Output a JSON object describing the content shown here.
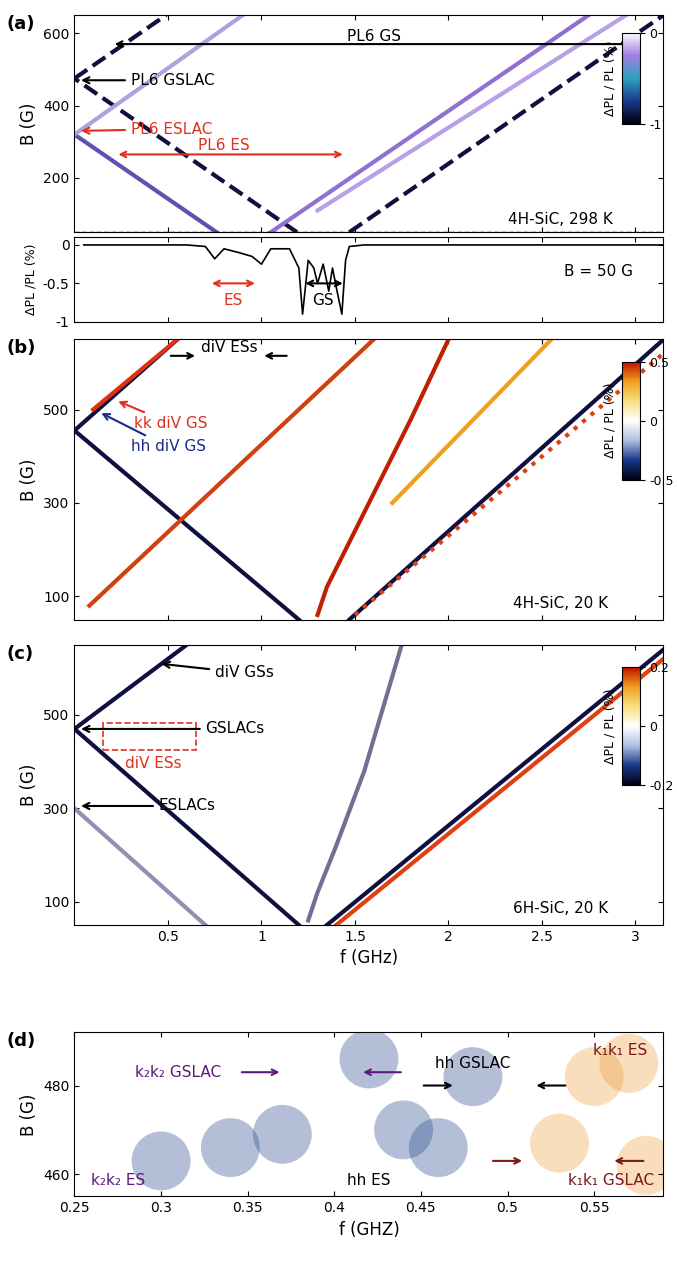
{
  "chart_data": [
    {
      "panel": "(a)",
      "type": "line",
      "xlim": [
        0,
        3.15
      ],
      "ylim": [
        50,
        650
      ],
      "xticks": [
        0.5,
        1,
        1.5,
        2,
        2.5,
        3
      ],
      "yticks": [
        200,
        400,
        600
      ],
      "tick_labels": "y",
      "y_label": "B (G)",
      "reference_line": 50,
      "colorbar": {
        "range": [
          -1,
          0
        ],
        "ticks": [
          -1,
          0
        ],
        "label": "ΔPL / PL (%)"
      },
      "series": [
        {
          "x": [
            1.47,
            3.15
          ],
          "values": [
            50,
            650
          ],
          "color": "#101040",
          "line_style": "dashed"
        },
        {
          "x": [
            1.19,
            0.0
          ],
          "values": [
            50,
            475
          ],
          "color": "#101040",
          "line_style": "dashed"
        },
        {
          "x": [
            0.0,
            0.49
          ],
          "values": [
            475,
            650
          ],
          "color": "#101040",
          "line_style": "dashed"
        },
        {
          "x": [
            1.05,
            2.75
          ],
          "values": [
            50,
            650
          ],
          "color": "#9070d0",
          "line_style": "solid"
        },
        {
          "x": [
            1.3,
            2.95
          ],
          "values": [
            110,
            650
          ],
          "color": "#b8a0e8",
          "line_style": "solid"
        },
        {
          "x": [
            0.76,
            0.0
          ],
          "values": [
            50,
            320
          ],
          "color": "#6050b0",
          "line_style": "solid"
        },
        {
          "x": [
            0.0,
            0.9
          ],
          "values": [
            320,
            650
          ],
          "color": "#b0a0e0",
          "line_style": "solid"
        }
      ],
      "annotations": [
        {
          "text": "PL6 GS",
          "x": 1.6,
          "y": 590,
          "color": "#000000",
          "span": [
            0.2,
            3.0
          ],
          "span_y": 570
        },
        {
          "text": "PL6 GSLAC",
          "x": 0.3,
          "y": 470,
          "color": "#000000",
          "arrow_to": [
            0.02,
            470
          ]
        },
        {
          "text": "PL6 ESLAC",
          "x": 0.3,
          "y": 335,
          "color": "#e0301e",
          "arrow_to": [
            0.02,
            330
          ]
        },
        {
          "text": "PL6 ES",
          "x": 0.8,
          "y": 290,
          "color": "#e0301e",
          "span": [
            0.22,
            1.45
          ],
          "span_y": 265
        },
        {
          "text": "4H-SiC, 298 K",
          "x": 2.6,
          "y": 85,
          "color": "#000000"
        }
      ]
    },
    {
      "type": "line",
      "xlim": [
        0,
        3.15
      ],
      "ylim": [
        -1,
        0.1
      ],
      "xticks": [
        0.5,
        1,
        1.5,
        2,
        2.5,
        3
      ],
      "yticks": [
        -1,
        -0.5,
        0
      ],
      "tick_labels": "y",
      "y_label": "ΔPL /PL (%)",
      "series": [
        {
          "x": [
            0.05,
            0.6,
            0.7,
            0.75,
            0.8,
            0.88,
            0.95,
            1.0,
            1.05,
            1.15,
            1.2,
            1.22,
            1.25,
            1.28,
            1.3,
            1.33,
            1.36,
            1.38,
            1.4,
            1.43,
            1.45,
            1.47,
            1.55,
            2,
            2.5,
            3.15
          ],
          "values": [
            0,
            0,
            -0.02,
            -0.18,
            -0.05,
            -0.1,
            -0.15,
            -0.25,
            -0.05,
            -0.05,
            -0.3,
            -0.9,
            -0.2,
            -0.3,
            -0.5,
            -0.25,
            -0.6,
            -0.3,
            -0.55,
            -0.9,
            -0.2,
            -0.02,
            0,
            0,
            0,
            0
          ],
          "color": "#000000",
          "line_style": "solid"
        }
      ],
      "annotations": [
        {
          "text": "B = 50 G",
          "x": 2.8,
          "y": -0.35,
          "color": "#000000"
        },
        {
          "text": "ES",
          "x": 0.85,
          "y": -0.72,
          "color": "#e0301e",
          "span": [
            0.72,
            0.98
          ],
          "span_y": -0.5
        },
        {
          "text": "GS",
          "x": 1.33,
          "y": -0.72,
          "color": "#000000",
          "span": [
            1.22,
            1.45
          ],
          "span_y": -0.5
        }
      ]
    },
    {
      "panel": "(b)",
      "type": "line",
      "xlim": [
        0,
        3.15
      ],
      "ylim": [
        50,
        650
      ],
      "xticks": [
        0.5,
        1,
        1.5,
        2,
        2.5,
        3
      ],
      "yticks": [
        100,
        300,
        500
      ],
      "tick_labels": "y",
      "y_label": "B (G)",
      "colorbar": {
        "range": [
          -0.5,
          0.5
        ],
        "ticks": [
          -0.5,
          0,
          0.5
        ],
        "label": "ΔPL / PL (%)"
      },
      "series": [
        {
          "x": [
            1.2,
            0.0
          ],
          "values": [
            50,
            455
          ],
          "color": "#101040",
          "line_style": "solid"
        },
        {
          "x": [
            0.0,
            0.55
          ],
          "values": [
            455,
            650
          ],
          "color": "#101040",
          "line_style": "solid"
        },
        {
          "x": [
            0.1,
            0.55
          ],
          "values": [
            500,
            650
          ],
          "color": "#e03010",
          "line_style": "solid"
        },
        {
          "x": [
            0.08,
            1.6
          ],
          "values": [
            80,
            650
          ],
          "color": "#d04010",
          "line_style": "solid"
        },
        {
          "x": [
            1.47,
            3.15
          ],
          "values": [
            50,
            650
          ],
          "color": "#101040",
          "line_style": "solid"
        },
        {
          "x": [
            1.5,
            3.15
          ],
          "values": [
            60,
            620
          ],
          "color": "#e04010",
          "line_style": "dotted"
        },
        {
          "x": [
            1.3,
            1.35,
            1.45,
            1.6,
            1.8,
            2.0
          ],
          "values": [
            60,
            120,
            200,
            320,
            480,
            650
          ],
          "color": "#c02000",
          "line_style": "solid"
        },
        {
          "x": [
            1.7,
            2.55
          ],
          "values": [
            300,
            650
          ],
          "color": "#f0a020",
          "line_style": "solid"
        }
      ],
      "annotations": [
        {
          "text": "diV ESs",
          "x": 0.83,
          "y": 632,
          "color": "#000000",
          "arrows": [
            [
              0.5,
              615,
              0.66,
              615
            ],
            [
              1.15,
              615,
              1.0,
              615
            ]
          ]
        },
        {
          "text": "kk diV GS",
          "x": 0.32,
          "y": 470,
          "color": "#e0301e",
          "arrow_to": [
            0.22,
            520
          ]
        },
        {
          "text": "hh diV GS",
          "x": 0.3,
          "y": 420,
          "color": "#1a2a8a",
          "arrow_to": [
            0.13,
            495
          ]
        },
        {
          "text": "4H-SiC, 20 K",
          "x": 2.6,
          "y": 85,
          "color": "#000000"
        }
      ]
    },
    {
      "panel": "(c)",
      "type": "line",
      "xlim": [
        0,
        3.15
      ],
      "ylim": [
        50,
        650
      ],
      "xticks": [
        0.5,
        1,
        1.5,
        2,
        2.5,
        3
      ],
      "yticks": [
        100,
        300,
        500
      ],
      "x_label": "f (GHz)",
      "y_label": "B (G)",
      "colorbar": {
        "range": [
          -0.2,
          0.2
        ],
        "ticks": [
          -0.2,
          0,
          0.2
        ],
        "label": "ΔPL / PL (%)"
      },
      "series": [
        {
          "x": [
            1.2,
            0.0
          ],
          "values": [
            50,
            470
          ],
          "color": "#101040",
          "line_style": "solid"
        },
        {
          "x": [
            0.0,
            0.6
          ],
          "values": [
            470,
            650
          ],
          "color": "#101040",
          "line_style": "solid"
        },
        {
          "x": [
            1.35,
            3.15
          ],
          "values": [
            50,
            640
          ],
          "color": "#101040",
          "line_style": "solid"
        },
        {
          "x": [
            1.4,
            3.15
          ],
          "values": [
            50,
            620
          ],
          "color": "#e04010",
          "line_style": "solid"
        },
        {
          "x": [
            1.25,
            1.3,
            1.4,
            1.55,
            1.75
          ],
          "values": [
            60,
            120,
            220,
            380,
            650
          ],
          "color": "#707090",
          "line_style": "solid"
        },
        {
          "x": [
            0.7,
            0.0
          ],
          "values": [
            50,
            300
          ],
          "color": "#9090b0",
          "line_style": "solid"
        }
      ],
      "box": {
        "x": [
          0.15,
          0.65
        ],
        "y": [
          425,
          482
        ],
        "color": "#e0301e"
      },
      "annotations": [
        {
          "text": "diV GSs",
          "x": 0.75,
          "y": 590,
          "color": "#000000",
          "arrow_to": [
            0.45,
            610
          ]
        },
        {
          "text": "GSLACs",
          "x": 0.7,
          "y": 470,
          "color": "#000000",
          "arrow_to": [
            0.02,
            470
          ]
        },
        {
          "text": "diV ESs",
          "x": 0.42,
          "y": 395,
          "color": "#e0301e"
        },
        {
          "text": "ESLACs",
          "x": 0.45,
          "y": 305,
          "color": "#000000",
          "arrow_to": [
            0.02,
            305
          ]
        },
        {
          "text": "6H-SiC, 20 K",
          "x": 2.6,
          "y": 85,
          "color": "#000000"
        }
      ]
    },
    {
      "panel": "(d)",
      "type": "scatter",
      "xlim": [
        0.25,
        0.59
      ],
      "ylim": [
        455,
        492
      ],
      "xticks": [
        0.25,
        0.3,
        0.35,
        0.4,
        0.45,
        0.5,
        0.55
      ],
      "yticks": [
        460,
        480
      ],
      "x_label": "f (GHZ)",
      "y_label": "B (G)",
      "series": [
        {
          "x": [
            0.3,
            0.34,
            0.37,
            0.46,
            0.44,
            0.48,
            0.42
          ],
          "values": [
            463,
            466,
            469,
            466,
            470,
            482,
            486
          ],
          "color": "#2a4a8e"
        },
        {
          "x": [
            0.55,
            0.57,
            0.53,
            0.58
          ],
          "values": [
            482,
            485,
            467,
            462
          ],
          "color": "#f0a040"
        }
      ],
      "annotations": [
        {
          "text": "k₂k₂ GSLAC",
          "x": 0.31,
          "y": 483,
          "color": "#5a1a7a",
          "arrows": [
            [
              0.345,
              483,
              0.37,
              483
            ],
            [
              0.44,
              483,
              0.415,
              483
            ]
          ]
        },
        {
          "text": "hh GSLAC",
          "x": 0.48,
          "y": 485,
          "color": "#000000",
          "arrows": [
            [
              0.45,
              480,
              0.47,
              480
            ],
            [
              0.535,
              480,
              0.515,
              480
            ]
          ]
        },
        {
          "text": "k₁k₁ ES",
          "x": 0.565,
          "y": 488,
          "color": "#7a1a1a"
        },
        {
          "text": "k₁k₁ GSLAC",
          "x": 0.56,
          "y": 458.5,
          "color": "#7a1a1a",
          "arrows": [
            [
              0.49,
              463,
              0.51,
              463
            ],
            [
              0.58,
              463,
              0.56,
              463
            ]
          ]
        },
        {
          "text": "k₂k₂ ES",
          "x": 0.275,
          "y": 458.5,
          "color": "#5a1a7a"
        },
        {
          "text": "hh ES",
          "x": 0.42,
          "y": 458.5,
          "color": "#000000"
        }
      ]
    }
  ]
}
